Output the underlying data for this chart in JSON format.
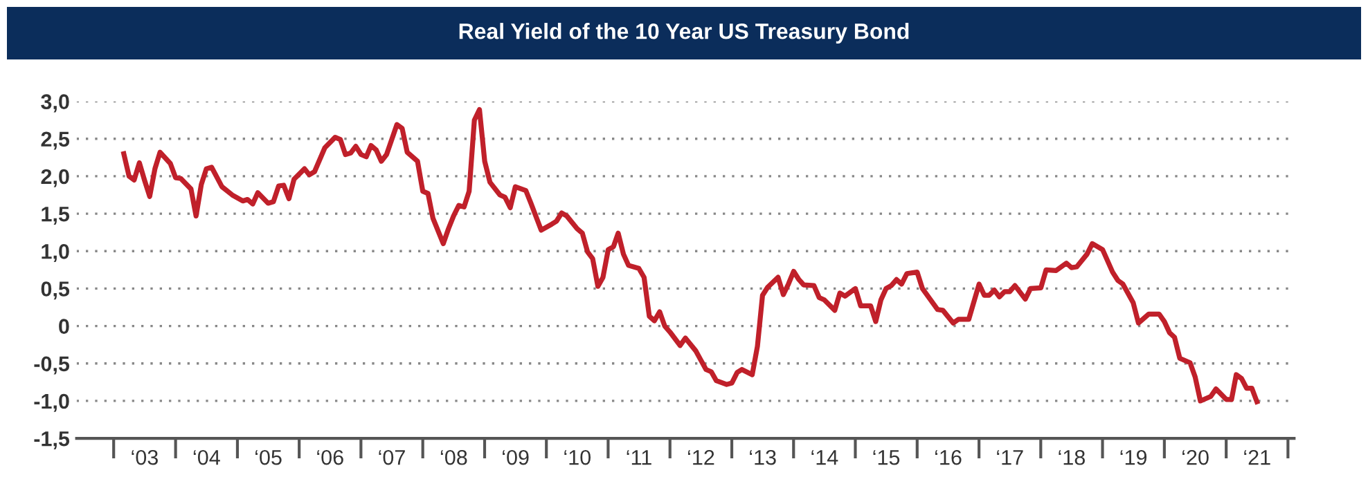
{
  "chart_data": {
    "type": "line",
    "title": "Real Yield of the 10 Year US Treasury Bond",
    "x": [
      "2003-03",
      "2003-04",
      "2003-05",
      "2003-06",
      "2003-07",
      "2003-08",
      "2003-09",
      "2003-10",
      "2003-12",
      "2004-01",
      "2004-02",
      "2004-04",
      "2004-05",
      "2004-06",
      "2004-07",
      "2004-08",
      "2004-10",
      "2004-12",
      "2005-02",
      "2005-03",
      "2005-04",
      "2005-05",
      "2005-07",
      "2005-08",
      "2005-09",
      "2005-10",
      "2005-11",
      "2005-12",
      "2006-02",
      "2006-03",
      "2006-04",
      "2006-06",
      "2006-08",
      "2006-09",
      "2006-10",
      "2006-11",
      "2006-12",
      "2007-01",
      "2007-02",
      "2007-03",
      "2007-04",
      "2007-05",
      "2007-06",
      "2007-08",
      "2007-09",
      "2007-10",
      "2007-12",
      "2008-01",
      "2008-02",
      "2008-03",
      "2008-05",
      "2008-06",
      "2008-07",
      "2008-08",
      "2008-09",
      "2008-10",
      "2008-11",
      "2008-12",
      "2009-01",
      "2009-02",
      "2009-04",
      "2009-05",
      "2009-06",
      "2009-07",
      "2009-09",
      "2009-10",
      "2009-12",
      "2010-02",
      "2010-03",
      "2010-04",
      "2010-05",
      "2010-07",
      "2010-08",
      "2010-09",
      "2010-10",
      "2010-11",
      "2010-12",
      "2011-01",
      "2011-02",
      "2011-03",
      "2011-04",
      "2011-05",
      "2011-07",
      "2011-08",
      "2011-09",
      "2011-10",
      "2011-11",
      "2011-12",
      "2012-01",
      "2012-03",
      "2012-04",
      "2012-06",
      "2012-08",
      "2012-09",
      "2012-10",
      "2012-12",
      "2013-01",
      "2013-02",
      "2013-03",
      "2013-05",
      "2013-06",
      "2013-07",
      "2013-08",
      "2013-10",
      "2013-11",
      "2013-12",
      "2014-01",
      "2014-02",
      "2014-03",
      "2014-05",
      "2014-06",
      "2014-07",
      "2014-09",
      "2014-10",
      "2014-11",
      "2015-01",
      "2015-02",
      "2015-04",
      "2015-05",
      "2015-06",
      "2015-07",
      "2015-08",
      "2015-09",
      "2015-10",
      "2015-11",
      "2016-01",
      "2016-02",
      "2016-05",
      "2016-06",
      "2016-08",
      "2016-09",
      "2016-11",
      "2017-01",
      "2017-02",
      "2017-03",
      "2017-04",
      "2017-05",
      "2017-06",
      "2017-07",
      "2017-08",
      "2017-10",
      "2017-11",
      "2018-01",
      "2018-02",
      "2018-04",
      "2018-06",
      "2018-07",
      "2018-08",
      "2018-10",
      "2018-11",
      "2019-01",
      "2019-03",
      "2019-04",
      "2019-05",
      "2019-07",
      "2019-08",
      "2019-10",
      "2019-12",
      "2020-01",
      "2020-02",
      "2020-03",
      "2020-04",
      "2020-06",
      "2020-07",
      "2020-08",
      "2020-10",
      "2020-11",
      "2021-01",
      "2021-02",
      "2021-03",
      "2021-04",
      "2021-05",
      "2021-06",
      "2021-07"
    ],
    "series": [
      {
        "color": "#c0202a",
        "values": [
          2.3,
          2.0,
          1.95,
          2.18,
          1.95,
          1.73,
          2.1,
          2.32,
          2.17,
          1.98,
          1.97,
          1.83,
          1.47,
          1.89,
          2.1,
          2.12,
          1.86,
          1.75,
          1.67,
          1.69,
          1.63,
          1.78,
          1.64,
          1.66,
          1.87,
          1.88,
          1.7,
          1.96,
          2.1,
          2.02,
          2.06,
          2.38,
          2.52,
          2.49,
          2.29,
          2.31,
          2.4,
          2.29,
          2.26,
          2.41,
          2.35,
          2.2,
          2.29,
          2.69,
          2.64,
          2.32,
          2.2,
          1.8,
          1.77,
          1.44,
          1.1,
          1.3,
          1.47,
          1.61,
          1.59,
          1.8,
          2.75,
          2.89,
          2.2,
          1.92,
          1.75,
          1.72,
          1.58,
          1.86,
          1.81,
          1.64,
          1.28,
          1.36,
          1.4,
          1.51,
          1.47,
          1.3,
          1.24,
          0.99,
          0.9,
          0.53,
          0.65,
          1.02,
          1.06,
          1.24,
          0.96,
          0.81,
          0.77,
          0.65,
          0.13,
          0.07,
          0.19,
          0.0,
          -0.08,
          -0.26,
          -0.16,
          -0.33,
          -0.58,
          -0.61,
          -0.73,
          -0.78,
          -0.76,
          -0.62,
          -0.58,
          -0.65,
          -0.27,
          0.41,
          0.52,
          0.65,
          0.42,
          0.56,
          0.73,
          0.62,
          0.55,
          0.54,
          0.38,
          0.35,
          0.21,
          0.44,
          0.4,
          0.5,
          0.27,
          0.27,
          0.06,
          0.35,
          0.5,
          0.54,
          0.62,
          0.56,
          0.7,
          0.72,
          0.5,
          0.22,
          0.21,
          0.04,
          0.09,
          0.09,
          0.56,
          0.41,
          0.41,
          0.48,
          0.39,
          0.46,
          0.46,
          0.54,
          0.36,
          0.5,
          0.51,
          0.75,
          0.74,
          0.84,
          0.78,
          0.79,
          0.96,
          1.1,
          1.02,
          0.72,
          0.61,
          0.56,
          0.31,
          0.04,
          0.16,
          0.16,
          0.06,
          -0.09,
          -0.15,
          -0.43,
          -0.49,
          -0.68,
          -1.0,
          -0.94,
          -0.84,
          -0.98,
          -0.98,
          -0.65,
          -0.7,
          -0.83,
          -0.83,
          -1.01
        ]
      }
    ],
    "xlim": [
      "2002-05-26",
      "2022-02-06"
    ],
    "xticks": [
      {
        "value": "2003-07-02",
        "label": "‘03"
      },
      {
        "value": "2004-07-02",
        "label": "‘04"
      },
      {
        "value": "2005-07-02",
        "label": "‘05"
      },
      {
        "value": "2006-07-02",
        "label": "‘06"
      },
      {
        "value": "2007-07-02",
        "label": "‘07"
      },
      {
        "value": "2008-07-02",
        "label": "‘08"
      },
      {
        "value": "2009-07-02",
        "label": "‘09"
      },
      {
        "value": "2010-07-02",
        "label": "‘10"
      },
      {
        "value": "2011-07-02",
        "label": "‘11"
      },
      {
        "value": "2012-07-02",
        "label": "‘12"
      },
      {
        "value": "2013-07-02",
        "label": "‘13"
      },
      {
        "value": "2014-07-02",
        "label": "‘14"
      },
      {
        "value": "2015-07-02",
        "label": "‘15"
      },
      {
        "value": "2016-07-02",
        "label": "‘16"
      },
      {
        "value": "2017-07-02",
        "label": "‘17"
      },
      {
        "value": "2018-07-02",
        "label": "‘18"
      },
      {
        "value": "2019-07-02",
        "label": "‘19"
      },
      {
        "value": "2020-07-02",
        "label": "‘20"
      },
      {
        "value": "2021-07-02",
        "label": "‘21"
      }
    ],
    "ylim": [
      -1.5,
      3.0
    ],
    "yticks": [
      {
        "value": 3.0,
        "label": "3,0"
      },
      {
        "value": 2.5,
        "label": "2,5"
      },
      {
        "value": 2.0,
        "label": "2,0"
      },
      {
        "value": 1.5,
        "label": "1,5"
      },
      {
        "value": 1.0,
        "label": "1,0"
      },
      {
        "value": 0.5,
        "label": "0,5"
      },
      0,
      {
        "value": -0.5,
        "label": "-0,5"
      },
      {
        "value": -1.0,
        "label": "-1,0"
      },
      {
        "value": -1.5,
        "label": "-1,5"
      }
    ],
    "grid": "y",
    "line_style": "solid"
  }
}
